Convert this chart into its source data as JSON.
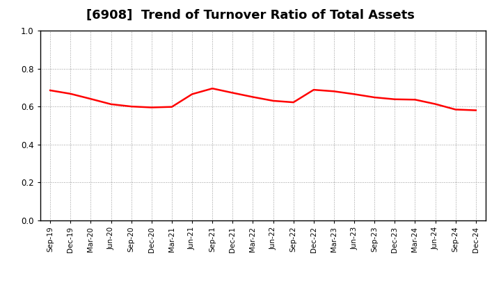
{
  "title": "[6908]  Trend of Turnover Ratio of Total Assets",
  "title_fontsize": 13,
  "line_color": "#ff0000",
  "line_width": 1.8,
  "background_color": "#ffffff",
  "grid_color": "#999999",
  "ylim": [
    0.0,
    1.0
  ],
  "yticks": [
    0.0,
    0.2,
    0.4,
    0.6,
    0.8,
    1.0
  ],
  "labels": [
    "Sep-19",
    "Dec-19",
    "Mar-20",
    "Jun-20",
    "Sep-20",
    "Dec-20",
    "Mar-21",
    "Jun-21",
    "Sep-21",
    "Dec-21",
    "Mar-22",
    "Jun-22",
    "Sep-22",
    "Dec-22",
    "Mar-23",
    "Jun-23",
    "Sep-23",
    "Dec-23",
    "Mar-24",
    "Jun-24",
    "Sep-24",
    "Dec-24"
  ],
  "values": [
    0.685,
    0.667,
    0.64,
    0.612,
    0.6,
    0.595,
    0.598,
    0.665,
    0.695,
    0.672,
    0.65,
    0.63,
    0.622,
    0.688,
    0.68,
    0.665,
    0.648,
    0.638,
    0.636,
    0.613,
    0.584,
    0.58
  ]
}
